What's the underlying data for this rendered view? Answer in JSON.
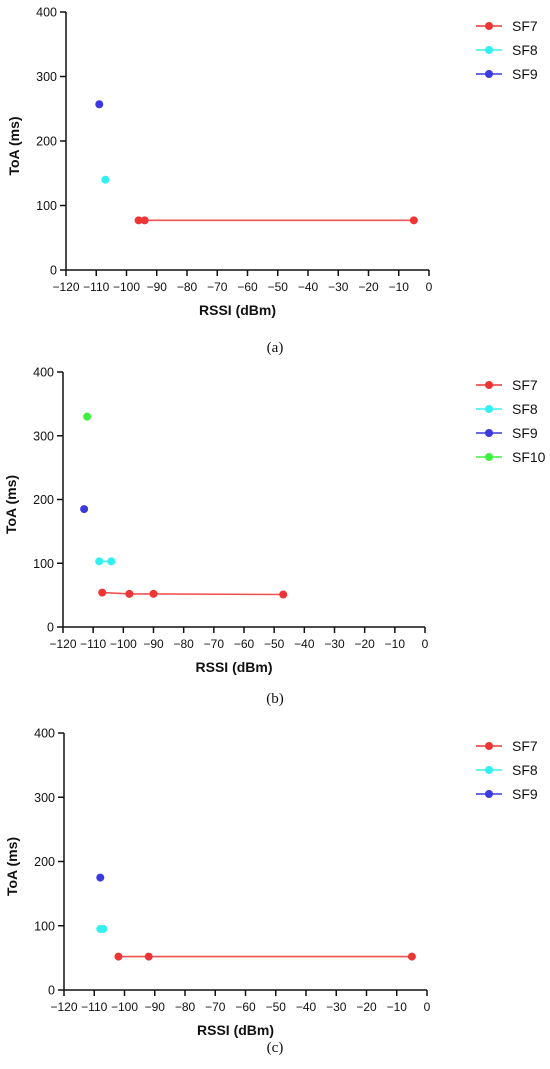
{
  "chart_data": [
    {
      "type": "scatter",
      "panel_label": "(a)",
      "xlabel": "RSSI (dBm)",
      "ylabel": "ToA (ms)",
      "xlim": [
        -120,
        0
      ],
      "ylim": [
        0,
        400
      ],
      "x_ticks": [
        -120,
        -110,
        -100,
        -90,
        -80,
        -70,
        -60,
        -50,
        -40,
        -30,
        -20,
        -10,
        0
      ],
      "y_ticks": [
        0,
        100,
        200,
        300,
        400
      ],
      "grid": false,
      "legend_position": "top-right",
      "series": [
        {
          "name": "SF7",
          "color": "#ee3535",
          "line": true,
          "points": [
            [
              -96,
              77
            ],
            [
              -94,
              77
            ],
            [
              -5,
              77
            ]
          ]
        },
        {
          "name": "SF8",
          "color": "#33f0f0",
          "line": true,
          "points": [
            [
              -107,
              140
            ]
          ]
        },
        {
          "name": "SF9",
          "color": "#3a3ae0",
          "line": true,
          "points": [
            [
              -109,
              257
            ]
          ]
        }
      ]
    },
    {
      "type": "scatter",
      "panel_label": "(b)",
      "xlabel": "RSSI (dBm)",
      "ylabel": "ToA (ms)",
      "xlim": [
        -120,
        0
      ],
      "ylim": [
        0,
        400
      ],
      "x_ticks": [
        -120,
        -110,
        -100,
        -90,
        -80,
        -70,
        -60,
        -50,
        -40,
        -30,
        -20,
        -10,
        0
      ],
      "y_ticks": [
        0,
        100,
        200,
        300,
        400
      ],
      "grid": false,
      "legend_position": "top-right",
      "series": [
        {
          "name": "SF7",
          "color": "#ee3535",
          "line": true,
          "points": [
            [
              -107,
              54
            ],
            [
              -98,
              52
            ],
            [
              -90,
              52
            ],
            [
              -47,
              51
            ]
          ]
        },
        {
          "name": "SF8",
          "color": "#33f0f0",
          "line": true,
          "points": [
            [
              -108,
              103
            ],
            [
              -104,
              103
            ]
          ]
        },
        {
          "name": "SF9",
          "color": "#3a3ae0",
          "line": true,
          "points": [
            [
              -113,
              185
            ]
          ]
        },
        {
          "name": "SF10",
          "color": "#3ef03e",
          "line": true,
          "points": [
            [
              -112,
              330
            ]
          ]
        }
      ]
    },
    {
      "type": "scatter",
      "panel_label": "(c)",
      "xlabel": "RSSI (dBm)",
      "ylabel": "ToA (ms)",
      "xlim": [
        -120,
        0
      ],
      "ylim": [
        0,
        400
      ],
      "x_ticks": [
        -120,
        -110,
        -100,
        -90,
        -80,
        -70,
        -60,
        -50,
        -40,
        -30,
        -20,
        -10,
        0
      ],
      "y_ticks": [
        0,
        100,
        200,
        300,
        400
      ],
      "grid": false,
      "legend_position": "top-right",
      "series": [
        {
          "name": "SF7",
          "color": "#ee3535",
          "line": true,
          "points": [
            [
              -102,
              52
            ],
            [
              -92,
              52
            ],
            [
              -5,
              52
            ]
          ]
        },
        {
          "name": "SF8",
          "color": "#33f0f0",
          "line": true,
          "points": [
            [
              -108,
              95
            ],
            [
              -107,
              95
            ]
          ]
        },
        {
          "name": "SF9",
          "color": "#3a3ae0",
          "line": true,
          "points": [
            [
              -108,
              175
            ]
          ]
        }
      ]
    }
  ]
}
